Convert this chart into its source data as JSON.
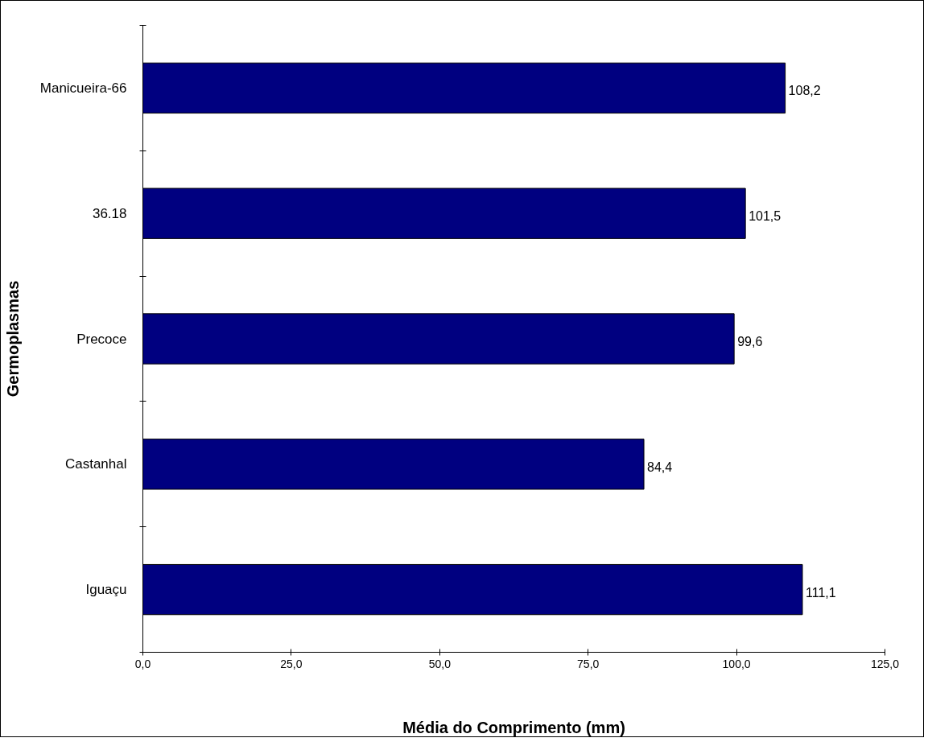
{
  "chart_data": {
    "type": "bar",
    "orientation": "horizontal",
    "xlabel": "Média do Comprimento (mm)",
    "ylabel": "Germoplasmas",
    "categories": [
      "Manicueira-66",
      "36.18",
      "Precoce",
      "Castanhal",
      "Iguaçu"
    ],
    "values": [
      108.2,
      101.5,
      99.6,
      84.4,
      111.1
    ],
    "value_labels": [
      "108,2",
      "101,5",
      "99,6",
      "84,4",
      "111,1"
    ],
    "color": "#000080",
    "xlim": [
      0,
      125
    ],
    "xticks": [
      {
        "value": 0,
        "label": "0,0"
      },
      {
        "value": 25,
        "label": "25,0"
      },
      {
        "value": 50,
        "label": "50,0"
      },
      {
        "value": 75,
        "label": "75,0"
      },
      {
        "value": 100,
        "label": "100,0"
      },
      {
        "value": 125,
        "label": "125,0"
      }
    ],
    "grid": false
  }
}
